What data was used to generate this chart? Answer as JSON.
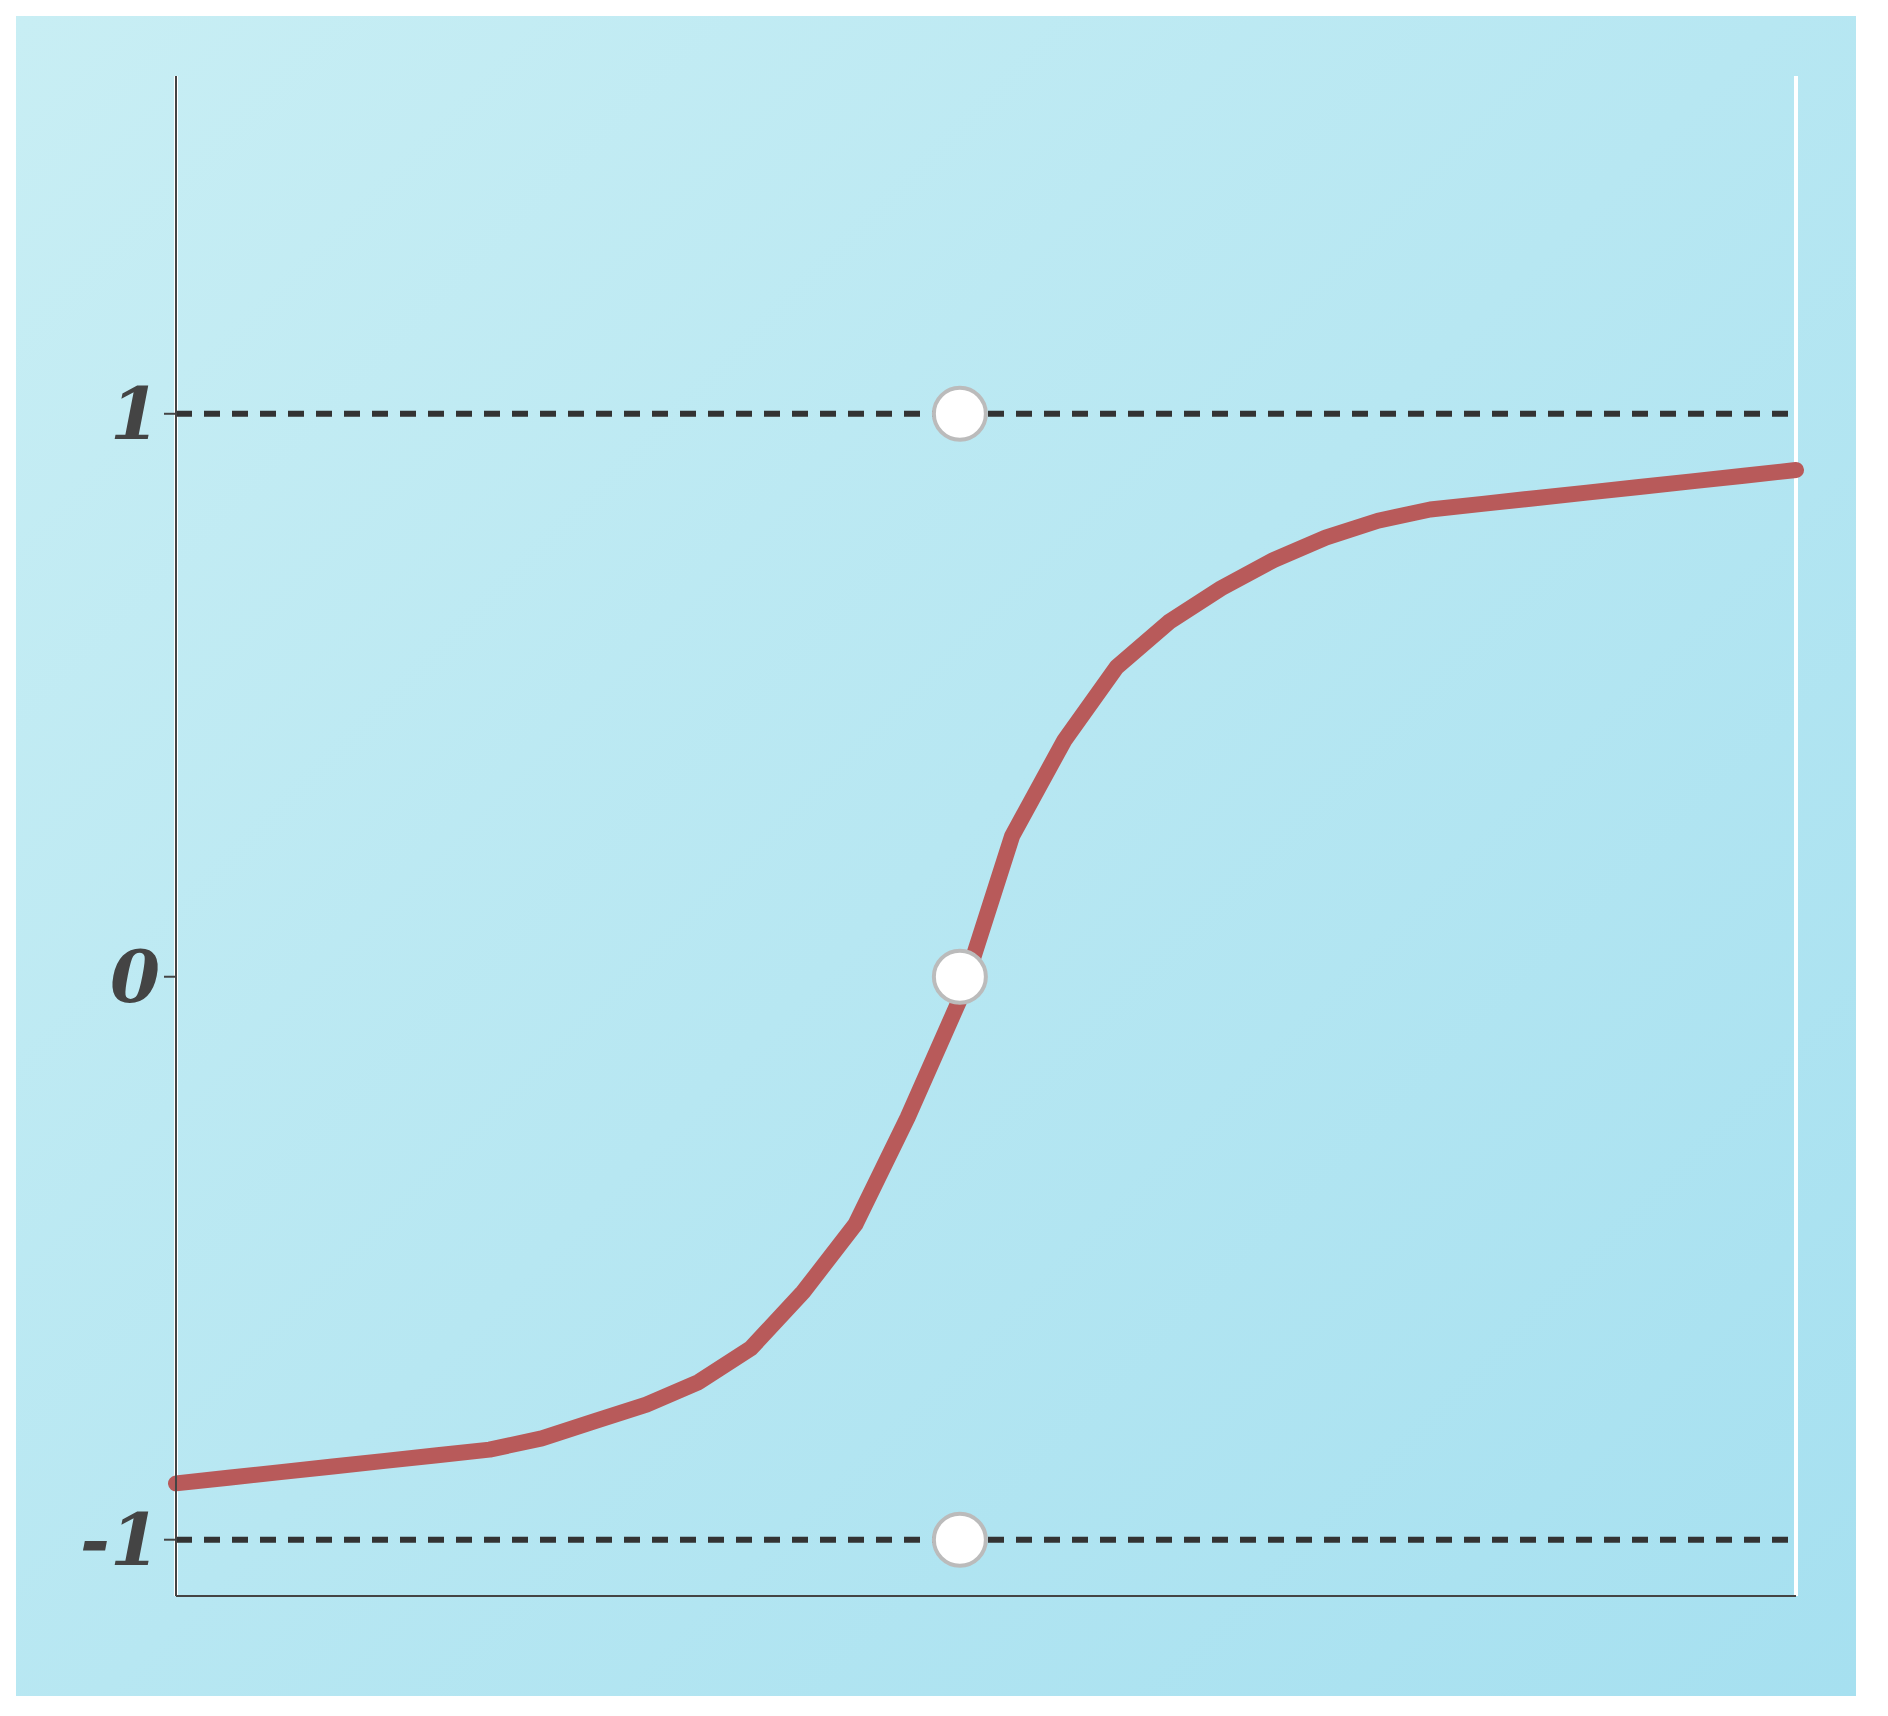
{
  "chart_data": {
    "type": "line",
    "categories": [
      null,
      null,
      null,
      null,
      null,
      null,
      null,
      null,
      null,
      null,
      null,
      null,
      null,
      null,
      null,
      null,
      null,
      null,
      null,
      null,
      null,
      null,
      null,
      null,
      null,
      null,
      null,
      null,
      null,
      null,
      null,
      null
    ],
    "series": [
      {
        "color": "#b85a5a",
        "values": [
          -0.9,
          -0.89,
          -0.88,
          -0.87,
          -0.86,
          -0.85,
          -0.84,
          -0.82,
          -0.79,
          -0.76,
          -0.72,
          -0.66,
          -0.56,
          -0.44,
          -0.25,
          -0.04,
          0.25,
          0.42,
          0.55,
          0.63,
          0.69,
          0.74,
          0.78,
          0.81,
          0.83,
          0.84,
          0.85,
          0.86,
          0.87,
          0.88,
          0.89,
          0.9
        ]
      }
    ],
    "ylim": [
      -1.1,
      1.6
    ],
    "yticks": [
      -1,
      0,
      1
    ],
    "ref_lines": [
      {
        "axis": "y",
        "value": 1,
        "color": "#333333",
        "line_style": "dashed"
      },
      {
        "axis": "y",
        "value": -1,
        "color": "#333333",
        "line_style": "dashed"
      }
    ],
    "grid": "x",
    "tick_labels": "y",
    "line_style": "solid"
  }
}
